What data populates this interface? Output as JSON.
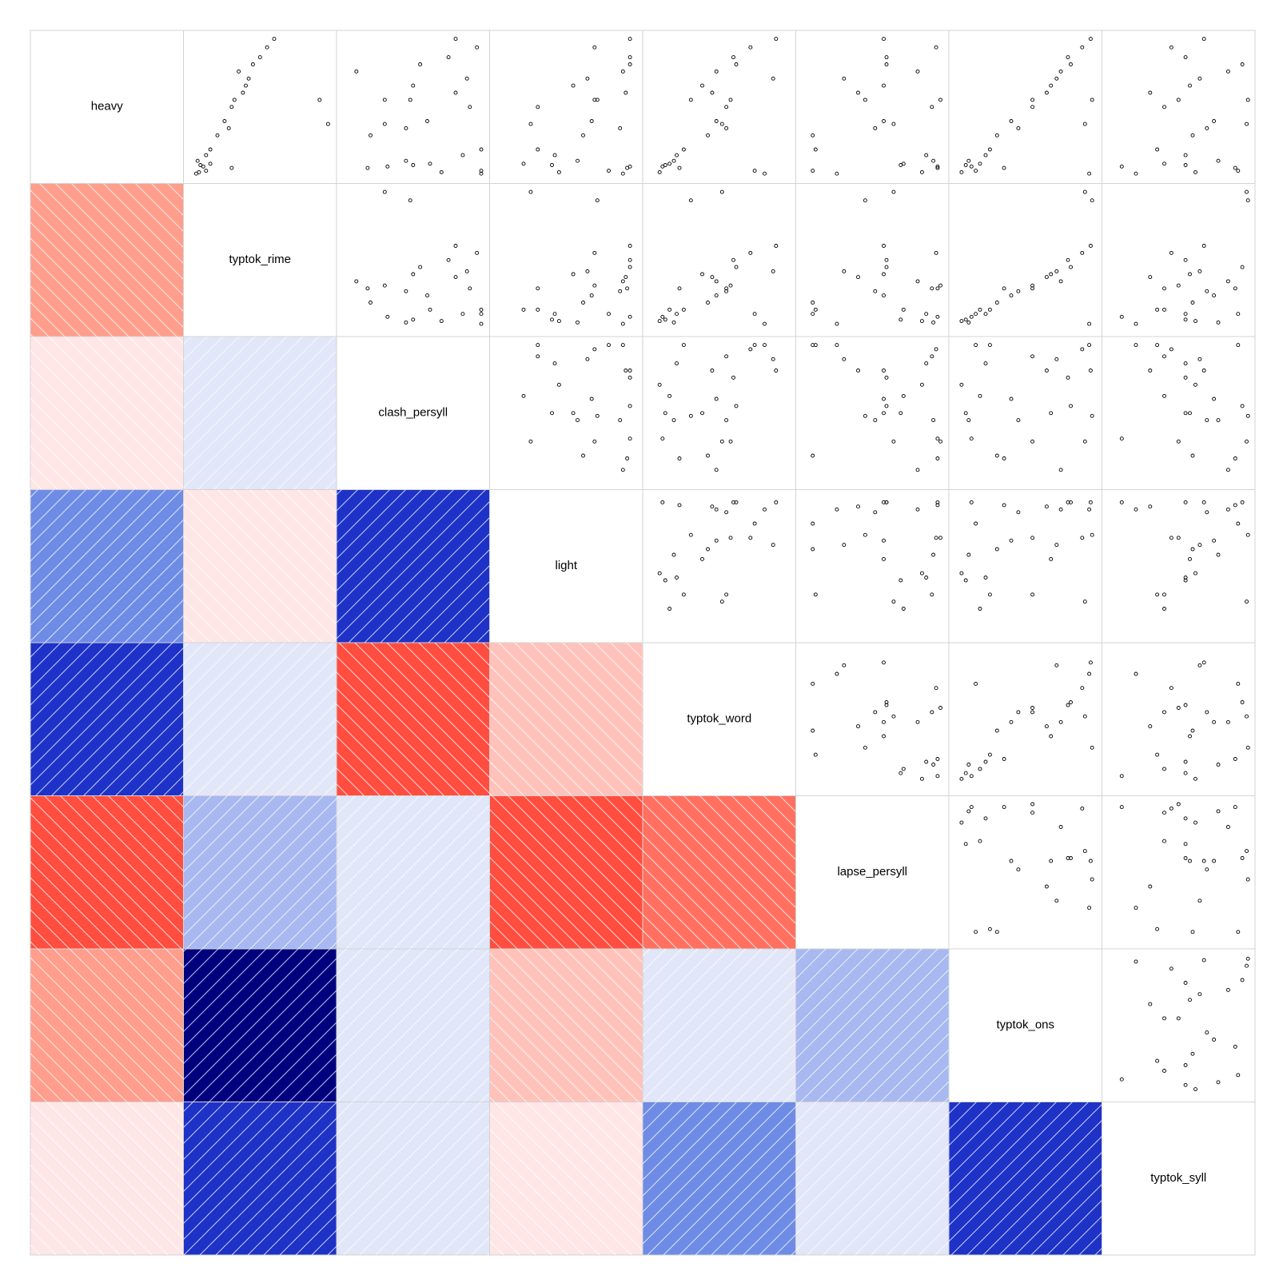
{
  "chart_data": {
    "type": "corrgram",
    "variables": [
      "heavy",
      "typtok_rime",
      "clash_persyll",
      "light",
      "typtok_word",
      "lapse_persyll",
      "typtok_ons",
      "typtok_syll"
    ],
    "lower_panel": "shade",
    "upper_panel": "points",
    "diag_panel": "labels",
    "colors": {
      "strong_positive": "#00007F",
      "positive": "#1E32C8",
      "mid_positive": "#6E8CE6",
      "weak_positive": "#E1E6F8",
      "weak_negative": "#FFE6E6",
      "mid_negative": "#FF9E8C",
      "negative": "#FF4E40",
      "grid": "#D3D3D3"
    },
    "correlations": [
      [
        1.0,
        -0.45,
        -0.08,
        0.6,
        0.75,
        -0.85,
        -0.45,
        -0.05
      ],
      [
        -0.45,
        1.0,
        0.1,
        -0.08,
        0.1,
        0.35,
        0.98,
        0.9
      ],
      [
        -0.08,
        0.1,
        1.0,
        0.88,
        -0.85,
        0.1,
        0.1,
        0.1
      ],
      [
        0.6,
        -0.08,
        0.88,
        1.0,
        -0.3,
        -0.85,
        -0.3,
        -0.08
      ],
      [
        0.75,
        0.1,
        -0.85,
        -0.3,
        1.0,
        -0.65,
        0.1,
        0.6
      ],
      [
        -0.85,
        0.35,
        0.1,
        -0.85,
        -0.65,
        1.0,
        0.35,
        0.1
      ],
      [
        -0.45,
        0.98,
        0.1,
        -0.3,
        0.1,
        0.35,
        1.0,
        0.92
      ],
      [
        -0.05,
        0.9,
        0.1,
        -0.08,
        0.6,
        0.1,
        0.92,
        1.0
      ]
    ],
    "observations": [
      [
        0.03,
        0.05,
        0.98,
        0.9,
        0.82,
        0.25,
        0.95,
        0.2
      ],
      [
        0.07,
        0.3,
        0.18,
        0.93,
        0.22,
        0.96,
        0.35,
        0.9
      ],
      [
        0.05,
        0.12,
        0.98,
        0.8,
        0.75,
        0.08,
        0.15,
        0.92
      ],
      [
        0.08,
        0.1,
        0.32,
        0.95,
        0.1,
        0.96,
        0.12,
        0.1
      ],
      [
        0.09,
        0.08,
        0.5,
        0.4,
        0.12,
        0.7,
        0.08,
        0.55
      ],
      [
        0.1,
        0.15,
        0.62,
        0.2,
        0.15,
        0.72,
        0.18,
        0.4
      ],
      [
        0.04,
        0.07,
        0.7,
        0.45,
        0.08,
        0.85,
        0.05,
        0.62
      ],
      [
        0.12,
        0.06,
        0.45,
        0.58,
        0.18,
        0.93,
        0.1,
        0.78
      ],
      [
        0.16,
        0.12,
        0.85,
        0.42,
        0.2,
        0.88,
        0.22,
        0.55
      ],
      [
        0.2,
        0.15,
        0.98,
        0.3,
        0.25,
        0.1,
        0.25,
        0.35
      ],
      [
        0.3,
        0.2,
        0.2,
        0.62,
        0.42,
        0.08,
        0.3,
        0.6
      ],
      [
        0.35,
        0.28,
        0.45,
        0.88,
        0.55,
        0.52,
        0.45,
        0.7
      ],
      [
        0.4,
        0.25,
        0.6,
        0.68,
        0.48,
        0.58,
        0.4,
        0.75
      ],
      [
        0.5,
        0.3,
        0.9,
        0.3,
        0.55,
        0.92,
        0.55,
        0.4
      ],
      [
        0.55,
        0.32,
        0.3,
        0.7,
        0.58,
        0.98,
        0.55,
        0.5
      ],
      [
        0.6,
        0.38,
        0.8,
        0.92,
        0.45,
        0.4,
        0.65,
        0.3
      ],
      [
        0.65,
        0.4,
        0.5,
        0.55,
        0.38,
        0.58,
        0.68,
        0.58
      ],
      [
        0.7,
        0.42,
        0.88,
        0.65,
        0.88,
        0.3,
        0.72,
        0.65
      ],
      [
        0.75,
        0.35,
        0.1,
        0.9,
        0.48,
        0.82,
        0.75,
        0.85
      ],
      [
        0.8,
        0.45,
        0.55,
        0.95,
        0.62,
        0.6,
        0.82,
        0.95
      ],
      [
        0.85,
        0.5,
        0.75,
        0.95,
        0.6,
        0.6,
        0.8,
        0.55
      ],
      [
        0.92,
        0.55,
        0.95,
        0.7,
        0.72,
        0.95,
        0.9,
        0.45
      ],
      [
        0.98,
        0.6,
        0.8,
        0.95,
        0.9,
        0.58,
        0.96,
        0.68
      ],
      [
        0.55,
        0.92,
        0.48,
        0.72,
        0.3,
        0.45,
        0.97,
        0.99
      ],
      [
        0.38,
        0.98,
        0.3,
        0.25,
        0.52,
        0.65,
        0.92,
        0.98
      ]
    ]
  }
}
